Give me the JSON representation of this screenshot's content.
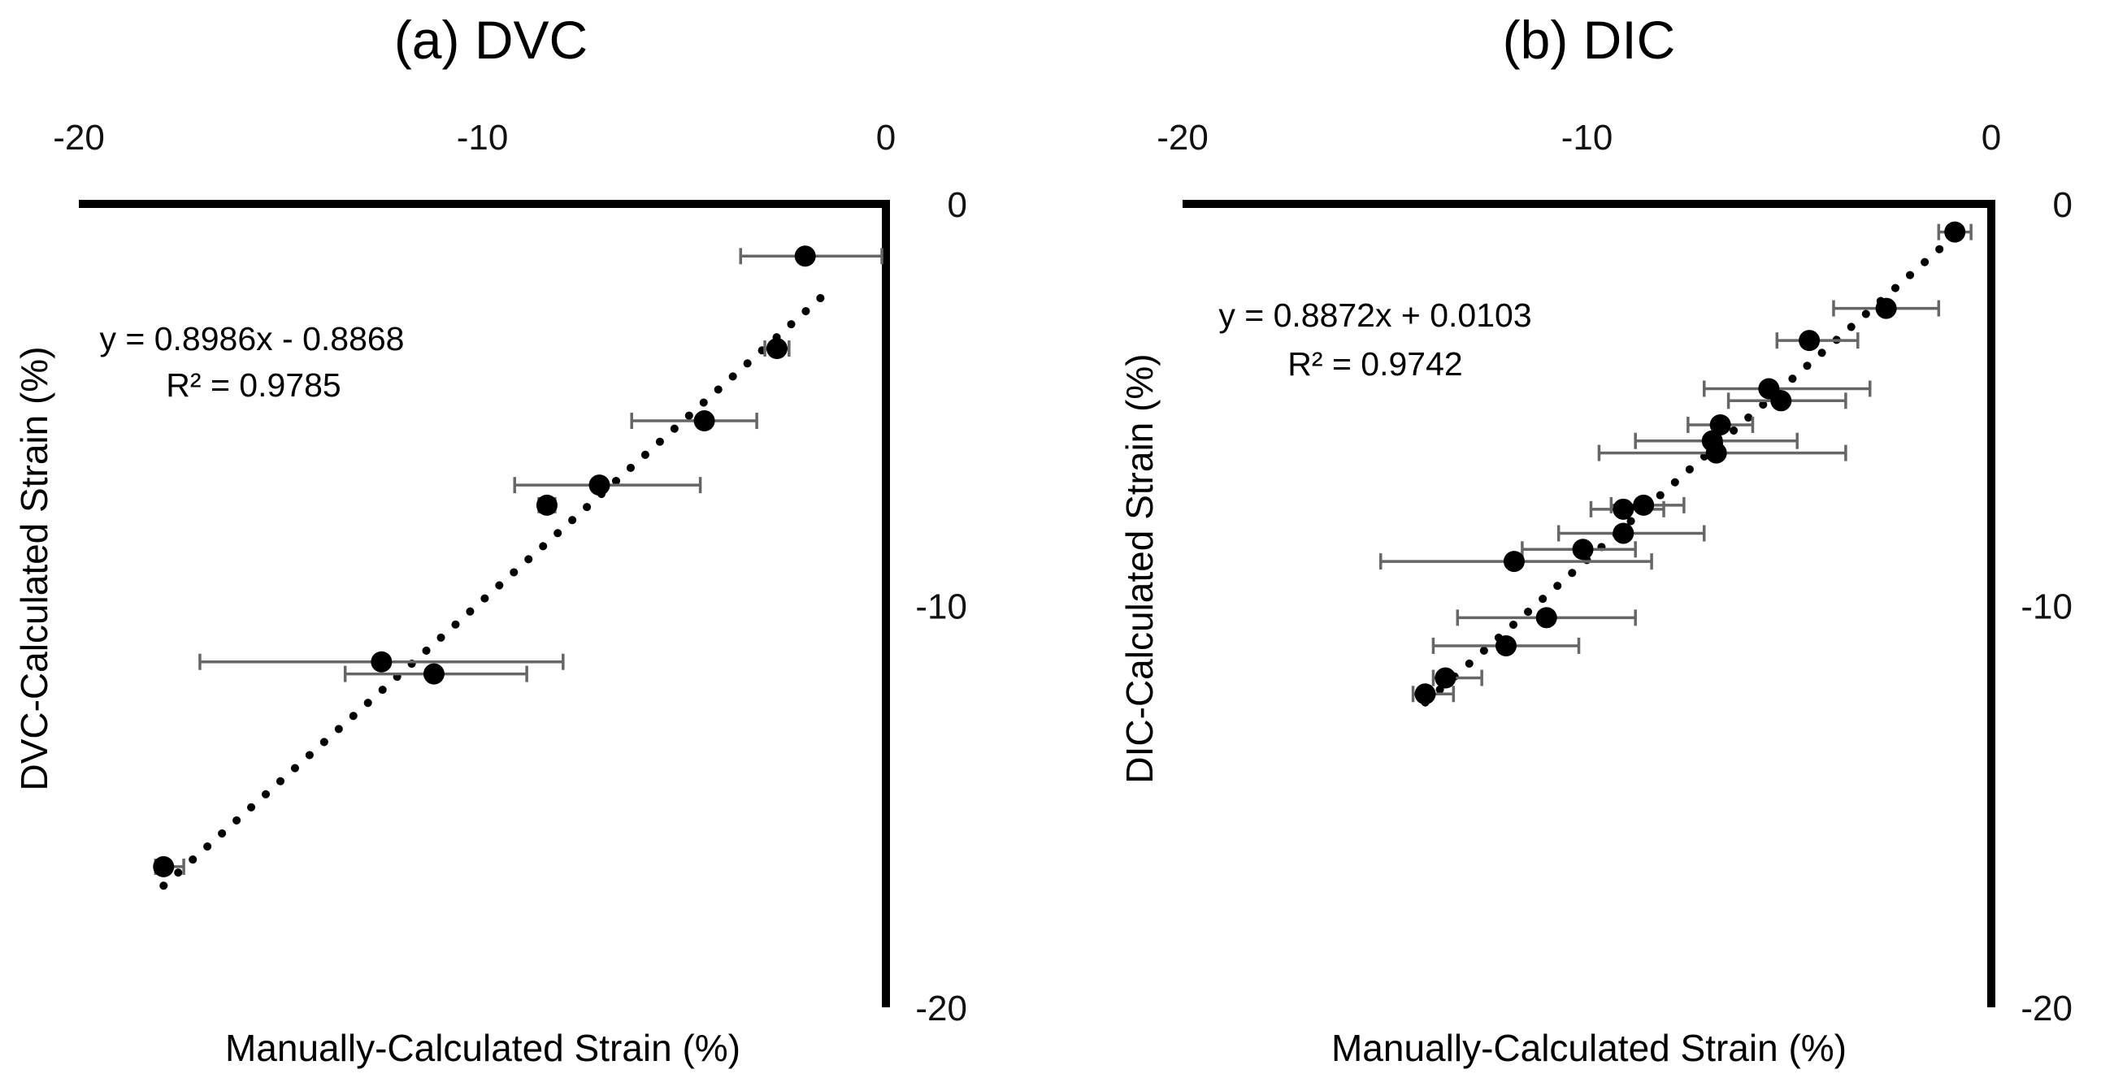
{
  "chart_data": [
    {
      "type": "scatter",
      "title": "(a) DVC",
      "xlabel": "Manually-Calculated Strain (%)",
      "ylabel": "DVC-Calculated Strain (%)",
      "xlim": [
        -20,
        0
      ],
      "ylim": [
        -20,
        0
      ],
      "x_axis_position": "top",
      "y_axis_position": "right",
      "x_ticks": [
        "-20",
        "-10",
        "0"
      ],
      "y_ticks": [
        "0",
        "-10",
        "-20"
      ],
      "grid": false,
      "colors": {
        "points": "#000000",
        "error_bars": "#666666",
        "axes": "#000000"
      },
      "trendline": {
        "equation": "y = 0.8986x - 0.8868",
        "r_squared": "R² = 0.9785",
        "slope": 0.8986,
        "intercept": -0.8868,
        "x_range": [
          -17.9,
          -1.4
        ]
      },
      "points": [
        {
          "x": -2.0,
          "y": -1.3,
          "xerr": [
            1.6,
            1.9
          ]
        },
        {
          "x": -2.7,
          "y": -3.6,
          "xerr": [
            0.3,
            0.3
          ]
        },
        {
          "x": -4.5,
          "y": -5.4,
          "xerr": [
            1.8,
            1.3
          ]
        },
        {
          "x": -7.1,
          "y": -7.0,
          "xerr": [
            2.1,
            2.5
          ]
        },
        {
          "x": -8.4,
          "y": -7.5,
          "xerr": [
            0.2,
            0.2
          ]
        },
        {
          "x": -11.2,
          "y": -11.7,
          "xerr": [
            2.2,
            2.3
          ]
        },
        {
          "x": -12.5,
          "y": -11.4,
          "xerr": [
            4.5,
            4.5
          ]
        },
        {
          "x": -17.9,
          "y": -16.5,
          "xerr": [
            0.2,
            0.5
          ]
        }
      ]
    },
    {
      "type": "scatter",
      "title": "(b) DIC",
      "xlabel": "Manually-Calculated Strain (%)",
      "ylabel": "DIC-Calculated Strain (%)",
      "xlim": [
        -20,
        0
      ],
      "ylim": [
        -20,
        0
      ],
      "x_axis_position": "top",
      "y_axis_position": "right",
      "x_ticks": [
        "-20",
        "-10",
        "0"
      ],
      "y_ticks": [
        "0",
        "-10",
        "-20"
      ],
      "grid": false,
      "colors": {
        "points": "#000000",
        "error_bars": "#666666",
        "axes": "#000000"
      },
      "trendline": {
        "equation": "y = 0.8872x + 0.0103",
        "r_squared": "R² = 0.9742",
        "slope": 0.8872,
        "intercept": 0.0103,
        "x_range": [
          -14.0,
          -1.2
        ]
      },
      "points": [
        {
          "x": -0.9,
          "y": -0.7,
          "xerr": [
            0.4,
            0.4
          ]
        },
        {
          "x": -2.6,
          "y": -2.6,
          "xerr": [
            1.3,
            1.3
          ]
        },
        {
          "x": -4.5,
          "y": -3.4,
          "xerr": [
            0.8,
            1.2
          ]
        },
        {
          "x": -5.5,
          "y": -4.6,
          "xerr": [
            1.6,
            2.5
          ]
        },
        {
          "x": -5.2,
          "y": -4.9,
          "xerr": [
            1.3,
            1.6
          ]
        },
        {
          "x": -6.7,
          "y": -5.5,
          "xerr": [
            0.8,
            0.8
          ]
        },
        {
          "x": -6.9,
          "y": -5.9,
          "xerr": [
            1.9,
            2.1
          ]
        },
        {
          "x": -6.8,
          "y": -6.2,
          "xerr": [
            2.9,
            3.2
          ]
        },
        {
          "x": -8.6,
          "y": -7.5,
          "xerr": [
            0.8,
            1.0
          ]
        },
        {
          "x": -9.1,
          "y": -7.6,
          "xerr": [
            0.8,
            1.0
          ]
        },
        {
          "x": -9.1,
          "y": -8.2,
          "xerr": [
            1.6,
            2.0
          ]
        },
        {
          "x": -10.1,
          "y": -8.6,
          "xerr": [
            1.5,
            1.3
          ]
        },
        {
          "x": -11.8,
          "y": -8.9,
          "xerr": [
            3.3,
            3.4
          ]
        },
        {
          "x": -11.0,
          "y": -10.3,
          "xerr": [
            2.2,
            2.2
          ]
        },
        {
          "x": -12.0,
          "y": -11.0,
          "xerr": [
            1.8,
            1.8
          ]
        },
        {
          "x": -13.5,
          "y": -11.8,
          "xerr": [
            0.3,
            0.9
          ]
        },
        {
          "x": -14.0,
          "y": -12.2,
          "xerr": [
            0.3,
            0.7
          ]
        }
      ]
    }
  ]
}
